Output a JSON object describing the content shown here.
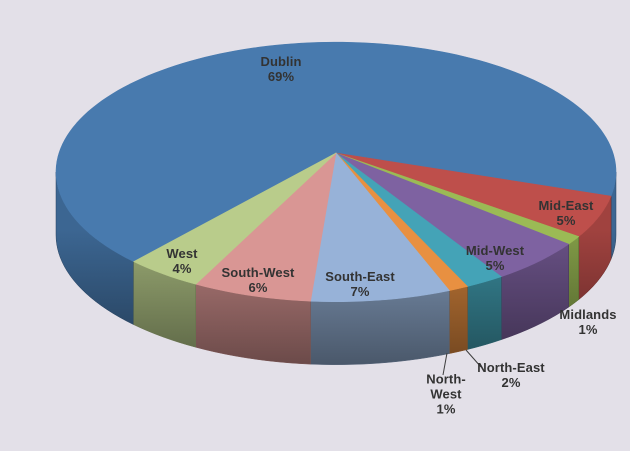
{
  "chart_data": {
    "type": "pie",
    "projection": "3d",
    "title": "",
    "legend": "none",
    "unit": "%",
    "categories": [
      "Dublin",
      "Mid-East",
      "Midlands",
      "Mid-West",
      "North-East",
      "North-West",
      "South-East",
      "South-West",
      "West"
    ],
    "values": [
      69,
      5,
      1,
      5,
      2,
      1,
      7,
      6,
      4
    ],
    "colors": [
      "#487AAE",
      "#BE4F4B",
      "#9BBA55",
      "#7E62A1",
      "#44A3B7",
      "#E89041",
      "#97B2D8",
      "#D99694",
      "#B9CC8B"
    ],
    "background": "#E3E0E8",
    "start_angle_deg": 220.5,
    "direction": "clockwise",
    "labels_display": [
      "Dublin\n69%",
      "Mid-East\n5%",
      "Midlands\n1%",
      "Mid-West\n5%",
      "North-East\n2%",
      "North-\nWest\n1%",
      "South-East\n7%",
      "South-West\n6%",
      "West\n4%"
    ]
  }
}
